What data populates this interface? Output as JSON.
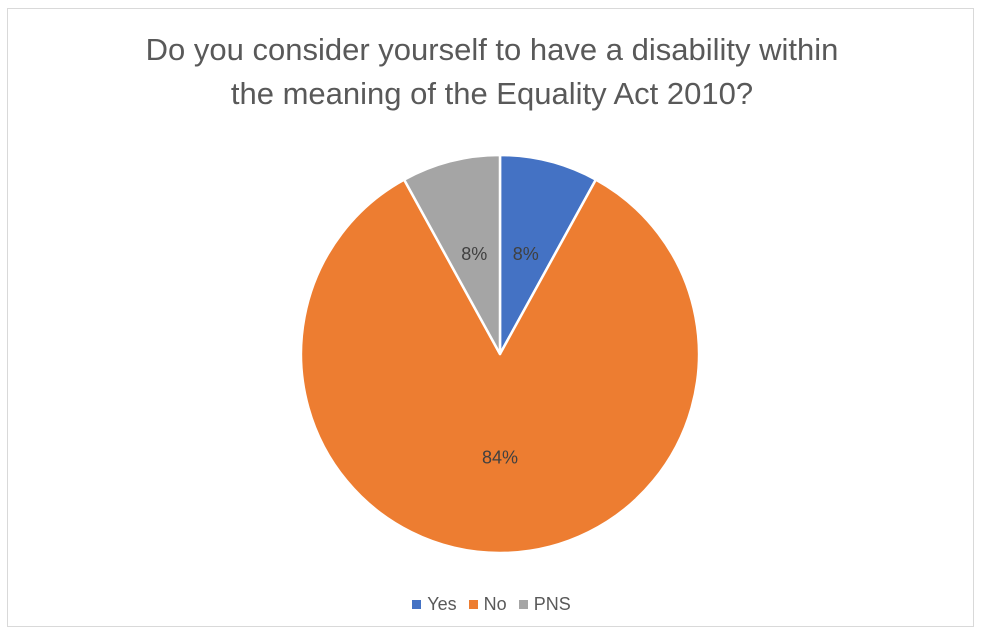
{
  "chart_data": {
    "type": "pie",
    "title_lines": [
      "Do you consider yourself to have a disability within",
      "the meaning of the Equality Act 2010?"
    ],
    "categories": [
      "Yes",
      "No",
      "PNS"
    ],
    "values": [
      8,
      84,
      8
    ],
    "data_labels": [
      "8%",
      "84%",
      "8%"
    ],
    "colors": [
      "#4472c4",
      "#ed7d31",
      "#a5a5a5"
    ],
    "legend_position": "bottom",
    "start_angle_deg": 0,
    "direction": "clockwise"
  }
}
